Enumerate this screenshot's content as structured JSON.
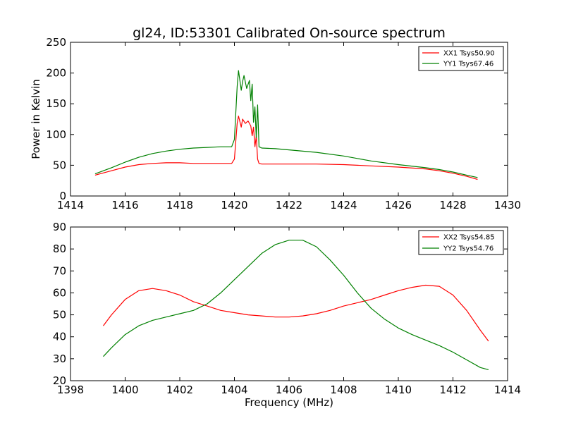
{
  "figure": {
    "background": "#ffffff"
  },
  "chart_data": [
    {
      "type": "line",
      "title": "gl24, ID:53301 Calibrated On-source spectrum",
      "xlabel": "",
      "ylabel": "Power in Kelvin",
      "xlim": [
        1414,
        1430
      ],
      "ylim": [
        0,
        250
      ],
      "xticks": [
        1414,
        1416,
        1418,
        1420,
        1422,
        1424,
        1426,
        1428,
        1430
      ],
      "yticks": [
        0,
        50,
        100,
        150,
        200,
        250
      ],
      "legend": {
        "position": "top-right"
      },
      "grid": false,
      "series": [
        {
          "name": "XX1 Tsys50.90",
          "color": "#ff0000",
          "x": [
            1414.9,
            1415.5,
            1416.0,
            1416.5,
            1417.0,
            1417.5,
            1418.0,
            1418.5,
            1419.0,
            1419.5,
            1419.9,
            1420.0,
            1420.1,
            1420.15,
            1420.25,
            1420.3,
            1420.4,
            1420.5,
            1420.6,
            1420.65,
            1420.7,
            1420.75,
            1420.8,
            1420.85,
            1420.9,
            1421.0,
            1421.5,
            1422.0,
            1423.0,
            1424.0,
            1425.0,
            1426.0,
            1427.0,
            1427.5,
            1428.0,
            1428.5,
            1428.9
          ],
          "y": [
            34,
            41,
            47,
            51,
            53,
            54,
            54,
            53,
            53,
            53,
            53,
            60,
            118,
            130,
            112,
            125,
            118,
            122,
            114,
            98,
            112,
            80,
            97,
            60,
            53,
            52,
            52,
            52,
            52,
            51,
            49,
            47,
            44,
            41,
            37,
            32,
            27
          ]
        },
        {
          "name": "YY1 Tsys67.46",
          "color": "#008000",
          "x": [
            1414.9,
            1415.5,
            1416.0,
            1416.5,
            1417.0,
            1417.5,
            1418.0,
            1418.5,
            1419.0,
            1419.5,
            1419.9,
            1420.0,
            1420.1,
            1420.15,
            1420.25,
            1420.3,
            1420.35,
            1420.45,
            1420.55,
            1420.6,
            1420.65,
            1420.7,
            1420.75,
            1420.8,
            1420.85,
            1420.9,
            1421.0,
            1421.5,
            1422.0,
            1423.0,
            1424.0,
            1425.0,
            1426.0,
            1427.0,
            1427.5,
            1428.0,
            1428.5,
            1428.9
          ],
          "y": [
            36,
            46,
            55,
            63,
            69,
            73,
            76,
            78,
            79,
            80,
            80,
            92,
            178,
            204,
            172,
            186,
            196,
            175,
            188,
            155,
            182,
            120,
            145,
            95,
            148,
            80,
            78,
            77,
            75,
            71,
            65,
            57,
            51,
            46,
            43,
            39,
            34,
            30
          ]
        }
      ]
    },
    {
      "type": "line",
      "title": "",
      "xlabel": "Frequency (MHz)",
      "ylabel": "",
      "xlim": [
        1398,
        1414
      ],
      "ylim": [
        20,
        90
      ],
      "xticks": [
        1398,
        1400,
        1402,
        1404,
        1406,
        1408,
        1410,
        1412,
        1414
      ],
      "yticks": [
        20,
        30,
        40,
        50,
        60,
        70,
        80,
        90
      ],
      "legend": {
        "position": "top-right"
      },
      "grid": false,
      "series": [
        {
          "name": "XX2 Tsys54.85",
          "color": "#ff0000",
          "x": [
            1399.2,
            1399.5,
            1400.0,
            1400.5,
            1401.0,
            1401.5,
            1402.0,
            1402.5,
            1403.0,
            1403.5,
            1404.0,
            1404.5,
            1405.0,
            1405.5,
            1406.0,
            1406.5,
            1407.0,
            1407.5,
            1408.0,
            1408.5,
            1409.0,
            1409.5,
            1410.0,
            1410.5,
            1411.0,
            1411.5,
            1412.0,
            1412.5,
            1413.0,
            1413.3
          ],
          "y": [
            45,
            50,
            57,
            61,
            62,
            61,
            59,
            56,
            54,
            52,
            51,
            50,
            49.5,
            49,
            49,
            49.5,
            50.5,
            52,
            54,
            55.5,
            57,
            59,
            61,
            62.5,
            63.5,
            63,
            59,
            52,
            43,
            38
          ]
        },
        {
          "name": "YY2 Tsys54.76",
          "color": "#008000",
          "x": [
            1399.2,
            1399.5,
            1400.0,
            1400.5,
            1401.0,
            1401.5,
            1402.0,
            1402.5,
            1403.0,
            1403.5,
            1404.0,
            1404.5,
            1405.0,
            1405.5,
            1406.0,
            1406.5,
            1407.0,
            1407.5,
            1408.0,
            1408.5,
            1409.0,
            1409.5,
            1410.0,
            1410.5,
            1411.0,
            1411.5,
            1412.0,
            1412.5,
            1413.0,
            1413.3
          ],
          "y": [
            31,
            35,
            41,
            45,
            47.5,
            49,
            50.5,
            52,
            55,
            60,
            66,
            72,
            78,
            82,
            84,
            84,
            81,
            75,
            68,
            60,
            53,
            48,
            44,
            41,
            38.5,
            36,
            33,
            29.5,
            26,
            25
          ]
        }
      ]
    }
  ]
}
